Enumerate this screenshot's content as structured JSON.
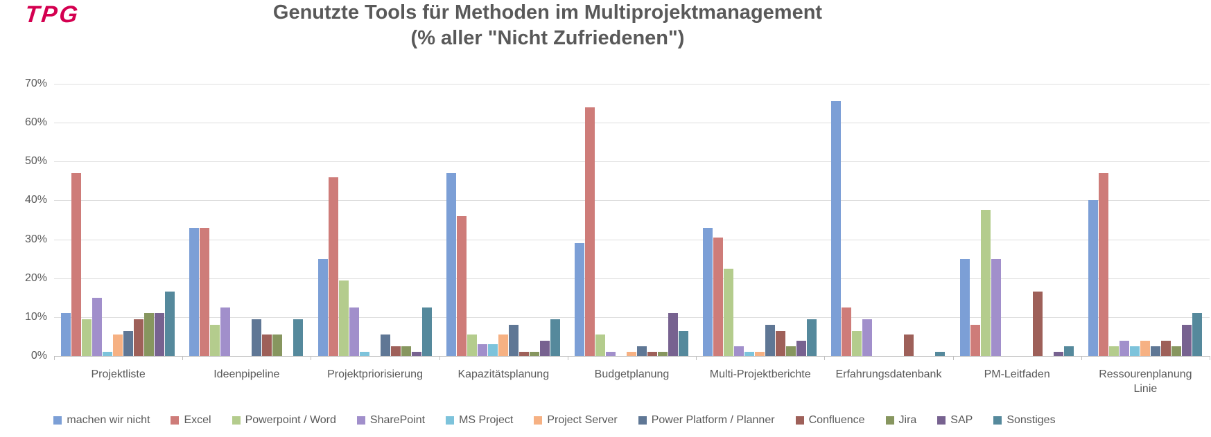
{
  "logo": {
    "text": "TPG",
    "color": "#D40050"
  },
  "title": {
    "line1": "Genutzte Tools für Methoden im Multiprojektmanagement",
    "line2": "(% aller \"Nicht Zufriedenen\")"
  },
  "chart_data": {
    "type": "bar",
    "title": "Genutzte Tools für Methoden im Multiprojektmanagement (% aller \"Nicht Zufriedenen\")",
    "xlabel": "",
    "ylabel": "",
    "ylim": [
      0,
      70
    ],
    "ytick_values": [
      0,
      10,
      20,
      30,
      40,
      50,
      60,
      70
    ],
    "ytick_labels": [
      "0%",
      "10%",
      "20%",
      "30%",
      "40%",
      "50%",
      "60%",
      "70%"
    ],
    "grid": true,
    "legend_position": "bottom",
    "categories": [
      "Projektliste",
      "Ideenpipeline",
      "Projektpriorisierung",
      "Kapazitätsplanung",
      "Budgetplanung",
      "Multi-Projektberichte",
      "Erfahrungsdatenbank",
      "PM-Leitfaden",
      "Ressourenplanung\nLinie"
    ],
    "series": [
      {
        "name": "machen wir nicht",
        "color": "#7C9FD6",
        "values": [
          11,
          33,
          25,
          47,
          29,
          33,
          65.5,
          25,
          40
        ]
      },
      {
        "name": "Excel",
        "color": "#CE7C79",
        "values": [
          47,
          33,
          46,
          36,
          64,
          30.5,
          12.5,
          8,
          47
        ]
      },
      {
        "name": "Powerpoint / Word",
        "color": "#B4CC8D",
        "values": [
          9.5,
          8,
          19.5,
          5.5,
          5.5,
          22.5,
          6.5,
          37.5,
          2.5
        ]
      },
      {
        "name": "SharePoint",
        "color": "#A18FCB",
        "values": [
          15,
          12.5,
          12.5,
          3,
          1,
          2.5,
          9.5,
          25,
          4
        ]
      },
      {
        "name": "MS Project",
        "color": "#7DC3DB",
        "values": [
          1,
          0,
          1,
          3,
          0,
          1,
          0,
          0,
          2.5
        ]
      },
      {
        "name": "Project Server",
        "color": "#F6B183",
        "values": [
          5.5,
          0,
          0,
          5.5,
          1,
          1,
          0,
          0,
          4
        ]
      },
      {
        "name": "Power Platform / Planner",
        "color": "#5F7795",
        "values": [
          6.5,
          9.5,
          5.5,
          8,
          2.5,
          8,
          0,
          0,
          2.5
        ]
      },
      {
        "name": "Confluence",
        "color": "#9E6059",
        "values": [
          9.5,
          5.5,
          2.5,
          1,
          1,
          6.5,
          5.5,
          16.5,
          4
        ]
      },
      {
        "name": "Jira",
        "color": "#87965F",
        "values": [
          11,
          5.5,
          2.5,
          1,
          1,
          2.5,
          0,
          0,
          2.5
        ]
      },
      {
        "name": "SAP",
        "color": "#776290",
        "values": [
          11,
          0,
          1,
          4,
          11,
          4,
          0,
          1,
          8
        ]
      },
      {
        "name": "Sonstiges",
        "color": "#55899C",
        "values": [
          16.5,
          9.5,
          12.5,
          9.5,
          6.5,
          9.5,
          1,
          2.5,
          11
        ]
      }
    ]
  }
}
